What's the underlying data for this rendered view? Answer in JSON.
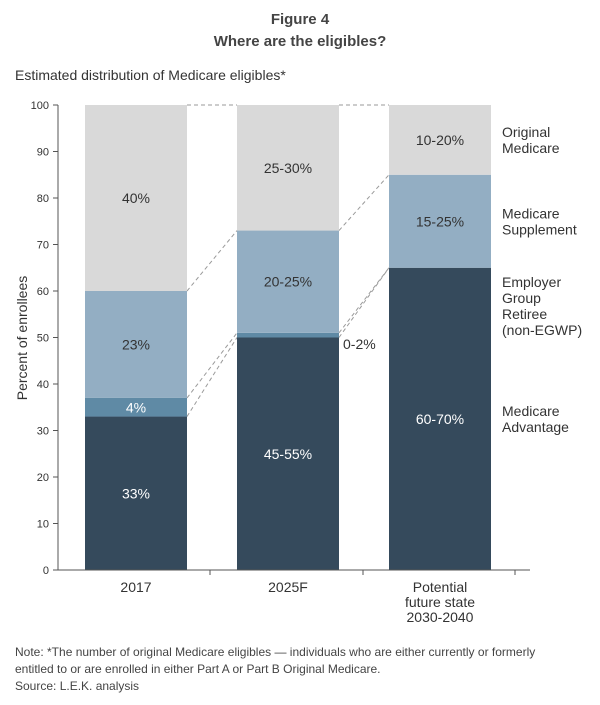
{
  "figure_number": "Figure 4",
  "title": "Where are the eligibles?",
  "subtitle": "Estimated distribution of Medicare eligibles*",
  "note_lines": [
    "Note: *The number of original Medicare eligibles — individuals who are either currently or formerly",
    "entitled to or are enrolled in either Part A or Part B Original Medicare."
  ],
  "source": "Source: L.E.K. analysis",
  "colors": {
    "original_medicare": "#d9d9d9",
    "medicare_supplement": "#93aec3",
    "employer_group_retiree": "#5f8aa5",
    "medicare_advantage": "#354a5c",
    "axis": "#555555",
    "connector": "#9a9a9a"
  },
  "chart_data": {
    "type": "bar",
    "stacked": true,
    "ylabel": "Percent of enrollees",
    "ylim": [
      0,
      100
    ],
    "yticks": [
      0,
      10,
      20,
      30,
      40,
      50,
      60,
      70,
      80,
      90,
      100
    ],
    "categories": [
      [
        "2017"
      ],
      [
        "2025F"
      ],
      [
        "Potential",
        "future state",
        "2030-2040"
      ]
    ],
    "series": [
      {
        "key": "medicare_advantage",
        "legend_lines": [
          "Medicare",
          "Advantage"
        ],
        "values": [
          33,
          50,
          65
        ],
        "labels": [
          "33%",
          "45-55%",
          "60-70%"
        ],
        "label_color": "#ffffff"
      },
      {
        "key": "employer_group_retiree",
        "legend_lines": [
          "Employer",
          "Group",
          "Retiree",
          "(non-EGWP)"
        ],
        "values": [
          4,
          1,
          0
        ],
        "labels": [
          "4%",
          "0-2%",
          ""
        ],
        "label_color": "#ffffff"
      },
      {
        "key": "medicare_supplement",
        "legend_lines": [
          "Medicare",
          "Supplement"
        ],
        "values": [
          23,
          22,
          20
        ],
        "labels": [
          "23%",
          "20-25%",
          "15-25%"
        ],
        "label_color": "#333333"
      },
      {
        "key": "original_medicare",
        "legend_lines": [
          "Original",
          "Medicare"
        ],
        "values": [
          40,
          27,
          15
        ],
        "labels": [
          "40%",
          "25-30%",
          "10-20%"
        ],
        "label_color": "#333333"
      }
    ]
  }
}
